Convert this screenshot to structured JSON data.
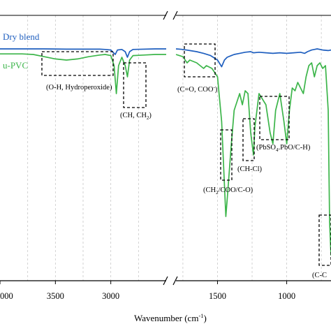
{
  "chart_data": {
    "type": "line",
    "xlabel_main": "Wavenumber (cm",
    "xlabel_sup": "-1",
    "xlabel_tail": ")",
    "x_axis_reversed": true,
    "x_axis_break": true,
    "xticks": [
      "000",
      "3500",
      "3000",
      "1500",
      "1000"
    ],
    "grid": "vertical dashed",
    "series": [
      {
        "name": "Dry blend",
        "color": "#1f5fbf",
        "points_left": [
          [
            4000,
            0.1
          ],
          [
            3800,
            0.1
          ],
          [
            3600,
            0.1
          ],
          [
            3400,
            0.105
          ],
          [
            3200,
            0.105
          ],
          [
            3100,
            0.105
          ],
          [
            3050,
            0.11
          ],
          [
            3000,
            0.12
          ],
          [
            2960,
            0.2
          ],
          [
            2940,
            0.12
          ],
          [
            2900,
            0.11
          ],
          [
            2870,
            0.15
          ],
          [
            2850,
            0.25
          ],
          [
            2830,
            0.15
          ],
          [
            2800,
            0.11
          ],
          [
            2600,
            0.1
          ],
          [
            2500,
            0.1
          ]
        ],
        "points_right": [
          [
            1800,
            0.1
          ],
          [
            1750,
            0.11
          ],
          [
            1700,
            0.13
          ],
          [
            1650,
            0.15
          ],
          [
            1600,
            0.18
          ],
          [
            1550,
            0.22
          ],
          [
            1500,
            0.3
          ],
          [
            1470,
            0.42
          ],
          [
            1450,
            0.3
          ],
          [
            1430,
            0.25
          ],
          [
            1400,
            0.22
          ],
          [
            1380,
            0.2
          ],
          [
            1340,
            0.18
          ],
          [
            1300,
            0.16
          ],
          [
            1260,
            0.15
          ],
          [
            1240,
            0.17
          ],
          [
            1200,
            0.16
          ],
          [
            1150,
            0.17
          ],
          [
            1100,
            0.18
          ],
          [
            1050,
            0.17
          ],
          [
            1000,
            0.18
          ],
          [
            950,
            0.17
          ],
          [
            900,
            0.16
          ],
          [
            870,
            0.18
          ],
          [
            850,
            0.15
          ],
          [
            820,
            0.12
          ],
          [
            800,
            0.11
          ],
          [
            780,
            0.1
          ],
          [
            740,
            0.12
          ],
          [
            700,
            0.13
          ],
          [
            680,
            0.12
          ]
        ]
      },
      {
        "name": "u-PVC",
        "color": "#3cb54a",
        "points_left": [
          [
            4000,
            0.19
          ],
          [
            3800,
            0.19
          ],
          [
            3700,
            0.2
          ],
          [
            3600,
            0.24
          ],
          [
            3500,
            0.28
          ],
          [
            3400,
            0.3
          ],
          [
            3300,
            0.28
          ],
          [
            3200,
            0.24
          ],
          [
            3100,
            0.21
          ],
          [
            3050,
            0.2
          ],
          [
            3000,
            0.22
          ],
          [
            2970,
            0.4
          ],
          [
            2950,
            0.9
          ],
          [
            2930,
            0.4
          ],
          [
            2900,
            0.25
          ],
          [
            2870,
            0.4
          ],
          [
            2850,
            0.6
          ],
          [
            2830,
            0.3
          ],
          [
            2800,
            0.22
          ],
          [
            2700,
            0.21
          ],
          [
            2600,
            0.2
          ],
          [
            2500,
            0.2
          ]
        ],
        "points_right": [
          [
            1800,
            0.2
          ],
          [
            1750,
            0.24
          ],
          [
            1720,
            0.35
          ],
          [
            1700,
            0.3
          ],
          [
            1650,
            0.35
          ],
          [
            1600,
            0.45
          ],
          [
            1580,
            0.4
          ],
          [
            1540,
            0.45
          ],
          [
            1500,
            0.6
          ],
          [
            1470,
            1.4
          ],
          [
            1440,
            3.1
          ],
          [
            1430,
            2.8
          ],
          [
            1400,
            1.8
          ],
          [
            1380,
            1.2
          ],
          [
            1340,
            0.9
          ],
          [
            1320,
            1.1
          ],
          [
            1300,
            0.85
          ],
          [
            1280,
            0.9
          ],
          [
            1260,
            1.6
          ],
          [
            1240,
            2.0
          ],
          [
            1230,
            1.5
          ],
          [
            1200,
            0.9
          ],
          [
            1150,
            1.1
          ],
          [
            1120,
            1.6
          ],
          [
            1100,
            1.8
          ],
          [
            1080,
            1.2
          ],
          [
            1050,
            0.9
          ],
          [
            1020,
            1.4
          ],
          [
            1000,
            1.8
          ],
          [
            980,
            1.2
          ],
          [
            960,
            0.8
          ],
          [
            940,
            0.85
          ],
          [
            920,
            0.7
          ],
          [
            880,
            0.9
          ],
          [
            860,
            0.6
          ],
          [
            840,
            0.4
          ],
          [
            820,
            0.35
          ],
          [
            800,
            0.6
          ],
          [
            780,
            0.4
          ],
          [
            760,
            0.35
          ],
          [
            740,
            0.45
          ],
          [
            720,
            0.4
          ],
          [
            700,
            1.2
          ],
          [
            690,
            3.2
          ],
          [
            680,
            3.8
          ]
        ]
      }
    ],
    "legend": [
      {
        "label": "Dry blend",
        "color": "#1f5fbf"
      },
      {
        "label": "u-PVC",
        "color": "#3cb54a"
      }
    ],
    "annotations": [
      {
        "text": "(O-H, Hydroperoxide)"
      },
      {
        "text": "(CH, CH",
        "sub": "2",
        "tail": ")"
      },
      {
        "text": "(C=O, COO",
        "sup": "-",
        "tail": ")"
      },
      {
        "text": "(CH",
        "sub": "2",
        "tail": "/COO/C-O)"
      },
      {
        "text": "(CH-Cl)"
      },
      {
        "text": "(PbSO",
        "sub": "4",
        "tail": ".PbO/C-H)"
      },
      {
        "text": "(C-C"
      }
    ]
  }
}
